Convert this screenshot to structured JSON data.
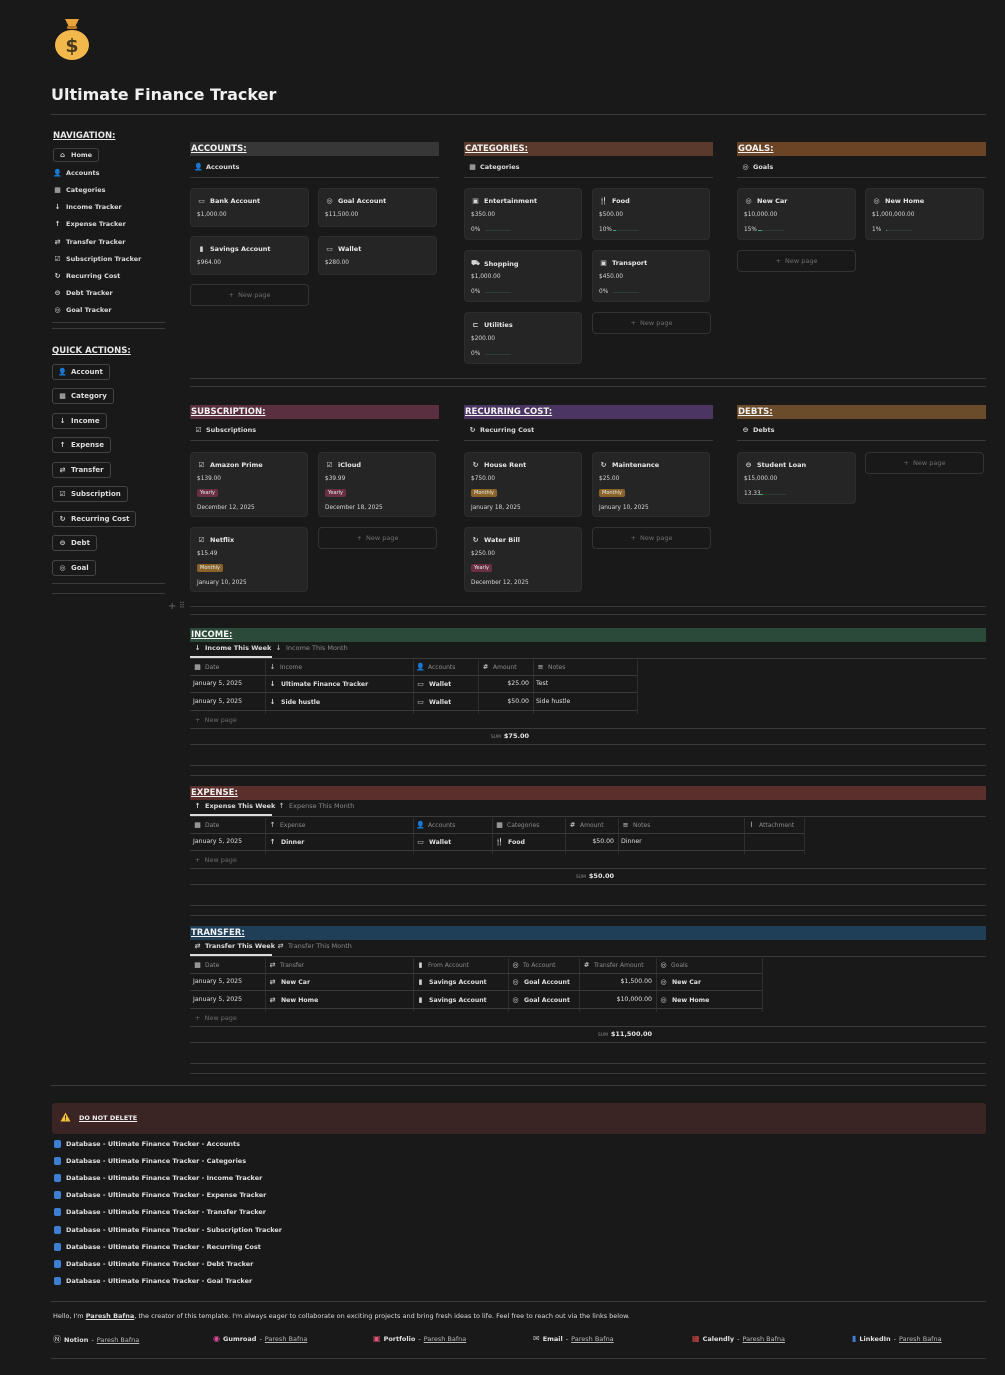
{
  "page": {
    "icon": "money-bag-icon",
    "title": "Ultimate Finance Tracker"
  },
  "navigation": {
    "heading": "NAVIGATION:",
    "items": [
      {
        "label": "Home",
        "icon": "home-icon"
      },
      {
        "label": "Accounts",
        "icon": "person-icon"
      },
      {
        "label": "Categories",
        "icon": "grid-icon"
      },
      {
        "label": "Income Tracker",
        "icon": "arrow-down-icon"
      },
      {
        "label": "Expense Tracker",
        "icon": "arrow-up-icon"
      },
      {
        "label": "Transfer Tracker",
        "icon": "transfer-icon"
      },
      {
        "label": "Subscription Tracker",
        "icon": "checkbox-icon"
      },
      {
        "label": "Recurring Cost",
        "icon": "recurring-icon"
      },
      {
        "label": "Debt Tracker",
        "icon": "minus-circle-icon"
      },
      {
        "label": "Goal Tracker",
        "icon": "target-icon"
      }
    ]
  },
  "quick_actions": {
    "heading": "QUICK ACTIONS:",
    "items": [
      {
        "label": "Account",
        "icon": "person-icon"
      },
      {
        "label": "Category",
        "icon": "grid-icon"
      },
      {
        "label": "Income",
        "icon": "arrow-down-icon"
      },
      {
        "label": "Expense",
        "icon": "arrow-up-icon"
      },
      {
        "label": "Transfer",
        "icon": "transfer-icon"
      },
      {
        "label": "Subscription",
        "icon": "checkbox-icon"
      },
      {
        "label": "Recurring Cost",
        "icon": "recurring-icon"
      },
      {
        "label": "Debt",
        "icon": "minus-circle-icon"
      },
      {
        "label": "Goal",
        "icon": "target-icon"
      }
    ]
  },
  "new_page_label": "New page",
  "accounts": {
    "heading": "ACCOUNTS:",
    "view": "Accounts",
    "color": "#373737",
    "cards": [
      {
        "name": "Bank Account",
        "value": "$1,000.00"
      },
      {
        "name": "Goal Account",
        "value": "$11,500.00"
      },
      {
        "name": "Savings Account",
        "value": "$964.00"
      },
      {
        "name": "Wallet",
        "value": "$280.00"
      }
    ]
  },
  "categories": {
    "heading": "CATEGORIES:",
    "view": "Categories",
    "color": "#5b3a2e",
    "cards": [
      {
        "name": "Entertainment",
        "value": "$350.00",
        "pct": "0%",
        "progress": 0
      },
      {
        "name": "Food",
        "value": "$500.00",
        "pct": "10%",
        "progress": 0.1
      },
      {
        "name": "Shopping",
        "value": "$1,000.00",
        "pct": "0%",
        "progress": 0
      },
      {
        "name": "Transport",
        "value": "$450.00",
        "pct": "0%",
        "progress": 0
      },
      {
        "name": "Utilities",
        "value": "$200.00",
        "pct": "0%",
        "progress": 0
      }
    ]
  },
  "goals": {
    "heading": "GOALS:",
    "view": "Goals",
    "color": "#6b4426",
    "cards": [
      {
        "name": "New Car",
        "value": "$10,000.00",
        "pct": "15%",
        "progress": 0.15
      },
      {
        "name": "New Home",
        "value": "$1,000,000.00",
        "pct": "1%",
        "progress": 0.01
      }
    ]
  },
  "subscription": {
    "heading": "SUBSCRIPTION:",
    "view": "Subscriptions",
    "color": "#5a2f3f",
    "cards": [
      {
        "name": "Amazon Prime",
        "value": "$139.00",
        "tag": "Yearly",
        "date": "December 12, 2025"
      },
      {
        "name": "iCloud",
        "value": "$39.99",
        "tag": "Yearly",
        "date": "December 18, 2025"
      },
      {
        "name": "Netflix",
        "value": "$15.49",
        "tag": "Monthly",
        "date": "January 10, 2025"
      }
    ]
  },
  "recurring": {
    "heading": "RECURRING COST:",
    "view": "Recurring Cost",
    "color": "#4a3563",
    "cards": [
      {
        "name": "House Rent",
        "value": "$750.00",
        "tag": "Monthly",
        "date": "January 18, 2025"
      },
      {
        "name": "Maintenance",
        "value": "$25.00",
        "tag": "Monthly",
        "date": "January 10, 2025"
      },
      {
        "name": "Water Bill",
        "value": "$250.00",
        "tag": "Yearly",
        "date": "December 12, 2025"
      }
    ]
  },
  "debts": {
    "heading": "DEBTS:",
    "view": "Debts",
    "color": "#6b4c2a",
    "cards": [
      {
        "name": "Student Loan",
        "value": "$15,000.00",
        "pct": "13.33",
        "progress": 0.1333
      }
    ]
  },
  "income": {
    "heading": "INCOME:",
    "color": "#2b4a3a",
    "tabs": [
      "Income This Week",
      "Income This Month"
    ],
    "columns": [
      "Date",
      "Income",
      "Accounts",
      "Amount",
      "Notes"
    ],
    "rows": [
      {
        "date": "January 5, 2025",
        "income": "Ultimate Finance Tracker",
        "account": "Wallet",
        "amount": "$25.00",
        "notes": "Test"
      },
      {
        "date": "January 5, 2025",
        "income": "Side hustle",
        "account": "Wallet",
        "amount": "$50.00",
        "notes": "Side hustle"
      }
    ],
    "sum_label": "SUM",
    "sum": "$75.00"
  },
  "expense": {
    "heading": "EXPENSE:",
    "color": "#5b2f2c",
    "tabs": [
      "Expense This Week",
      "Expense This Month"
    ],
    "columns": [
      "Date",
      "Expense",
      "Accounts",
      "Categories",
      "Amount",
      "Notes",
      "Attachment"
    ],
    "rows": [
      {
        "date": "January 5, 2025",
        "expense": "Dinner",
        "account": "Wallet",
        "category": "Food",
        "amount": "$50.00",
        "notes": "Dinner"
      }
    ],
    "sum_label": "SUM",
    "sum": "$50.00"
  },
  "transfer": {
    "heading": "TRANSFER:",
    "color": "#1f3f58",
    "tabs": [
      "Transfer This Week",
      "Transfer This Month"
    ],
    "columns": [
      "Date",
      "Transfer",
      "From Account",
      "To Account",
      "Transfer Amount",
      "Goals"
    ],
    "rows": [
      {
        "date": "January 5, 2025",
        "transfer": "New Car",
        "from": "Savings Account",
        "to": "Goal Account",
        "amount": "$1,500.00",
        "goal": "New Car"
      },
      {
        "date": "January 5, 2025",
        "transfer": "New Home",
        "from": "Savings Account",
        "to": "Goal Account",
        "amount": "$10,000.00",
        "goal": "New Home"
      }
    ],
    "sum_label": "SUM",
    "sum": "$11,500.00"
  },
  "warning": {
    "label": "DO NOT DELETE",
    "color": "#3b2424"
  },
  "databases": [
    "Database - Ultimate Finance Tracker - Accounts",
    "Database - Ultimate Finance Tracker - Categories",
    "Database - Ultimate Finance Tracker - Income Tracker",
    "Database - Ultimate Finance Tracker - Expense Tracker",
    "Database - Ultimate Finance Tracker - Transfer Tracker",
    "Database - Ultimate Finance Tracker - Subscription Tracker",
    "Database - Ultimate Finance Tracker - Recurring Cost",
    "Database - Ultimate Finance Tracker - Debt Tracker",
    "Database - Ultimate Finance Tracker - Goal Tracker"
  ],
  "footer": {
    "intro_pre": "Hello, I'm ",
    "intro_name": "Paresh Bafna",
    "intro_post": ", the creator of this template. I'm always eager to collaborate on exciting projects and bring fresh ideas to life. Feel free to reach out via the links below.",
    "links": [
      {
        "label": "Notion",
        "sep": " - ",
        "name": "Paresh Bafna",
        "icon": "notion-icon"
      },
      {
        "label": "Gumroad",
        "sep": " - ",
        "name": "Paresh Bafna",
        "icon": "gumroad-icon"
      },
      {
        "label": "Portfolio",
        "sep": " - ",
        "name": "Paresh Bafna",
        "icon": "portfolio-icon"
      },
      {
        "label": "Email",
        "sep": " - ",
        "name": "Paresh Bafna",
        "icon": "email-icon"
      },
      {
        "label": "Calendly",
        "sep": " - ",
        "name": "Paresh Bafna",
        "icon": "calendar-icon"
      },
      {
        "label": "LinkedIn",
        "sep": " - ",
        "name": "Paresh Bafna",
        "icon": "linkedin-icon"
      }
    ]
  }
}
